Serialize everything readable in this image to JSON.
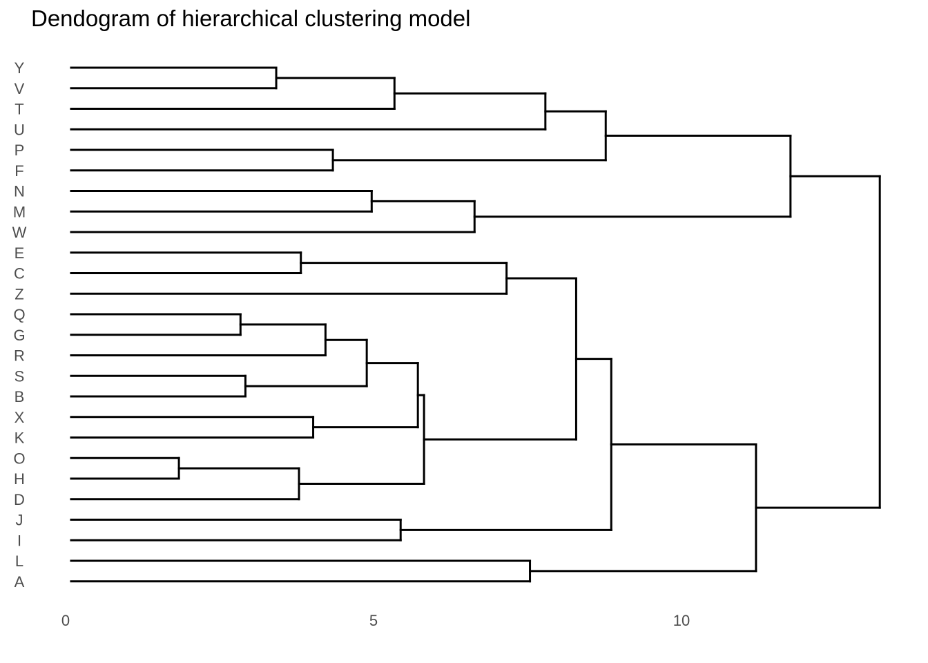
{
  "chart_data": {
    "type": "dendrogram",
    "title": "Dendogram of hierarchical clustering model",
    "orientation": "horizontal",
    "grid": false,
    "xlim": [
      0,
      13.5
    ],
    "x_ticks": [
      0,
      5,
      10
    ],
    "x_tick_labels": [
      "0",
      "5",
      "10"
    ],
    "leaves": [
      "Y",
      "V",
      "T",
      "U",
      "P",
      "F",
      "N",
      "M",
      "W",
      "E",
      "C",
      "Z",
      "Q",
      "G",
      "R",
      "S",
      "B",
      "X",
      "K",
      "O",
      "H",
      "D",
      "J",
      "I",
      "L",
      "A"
    ],
    "merges": [
      {
        "id": "m1",
        "children": [
          "O",
          "H"
        ],
        "height": 1.75
      },
      {
        "id": "m2",
        "children": [
          "Q",
          "G"
        ],
        "height": 2.75
      },
      {
        "id": "m3",
        "children": [
          "S",
          "B"
        ],
        "height": 2.83
      },
      {
        "id": "m4",
        "children": [
          "Y",
          "V"
        ],
        "height": 3.33
      },
      {
        "id": "m5",
        "children": [
          "m1",
          "D"
        ],
        "height": 3.7
      },
      {
        "id": "m6",
        "children": [
          "E",
          "C"
        ],
        "height": 3.73
      },
      {
        "id": "m7",
        "children": [
          "X",
          "K"
        ],
        "height": 3.93
      },
      {
        "id": "m8",
        "children": [
          "m2",
          "R"
        ],
        "height": 4.13
      },
      {
        "id": "m9",
        "children": [
          "P",
          "F"
        ],
        "height": 4.25
      },
      {
        "id": "m10",
        "children": [
          "m8",
          "m3"
        ],
        "height": 4.8
      },
      {
        "id": "m11",
        "children": [
          "N",
          "M"
        ],
        "height": 4.88
      },
      {
        "id": "m12",
        "children": [
          "m4",
          "T"
        ],
        "height": 5.25
      },
      {
        "id": "m13",
        "children": [
          "J",
          "I"
        ],
        "height": 5.35
      },
      {
        "id": "m14",
        "children": [
          "m10",
          "m7"
        ],
        "height": 5.63
      },
      {
        "id": "m15",
        "children": [
          "m14",
          "m5"
        ],
        "height": 5.73
      },
      {
        "id": "m16",
        "children": [
          "m11",
          "W"
        ],
        "height": 6.55
      },
      {
        "id": "m17",
        "children": [
          "m6",
          "Z"
        ],
        "height": 7.07
      },
      {
        "id": "m18",
        "children": [
          "L",
          "A"
        ],
        "height": 7.45
      },
      {
        "id": "m19",
        "children": [
          "m12",
          "U"
        ],
        "height": 7.7
      },
      {
        "id": "m20",
        "children": [
          "m17",
          "m15"
        ],
        "height": 8.2
      },
      {
        "id": "m21",
        "children": [
          "m19",
          "m9"
        ],
        "height": 8.68
      },
      {
        "id": "m22",
        "children": [
          "m20",
          "m13"
        ],
        "height": 8.77
      },
      {
        "id": "m23",
        "children": [
          "m22",
          "m18"
        ],
        "height": 11.12
      },
      {
        "id": "m24",
        "children": [
          "m21",
          "m16"
        ],
        "height": 11.68
      },
      {
        "id": "m25",
        "children": [
          "m24",
          "m23"
        ],
        "height": 13.13
      }
    ]
  }
}
